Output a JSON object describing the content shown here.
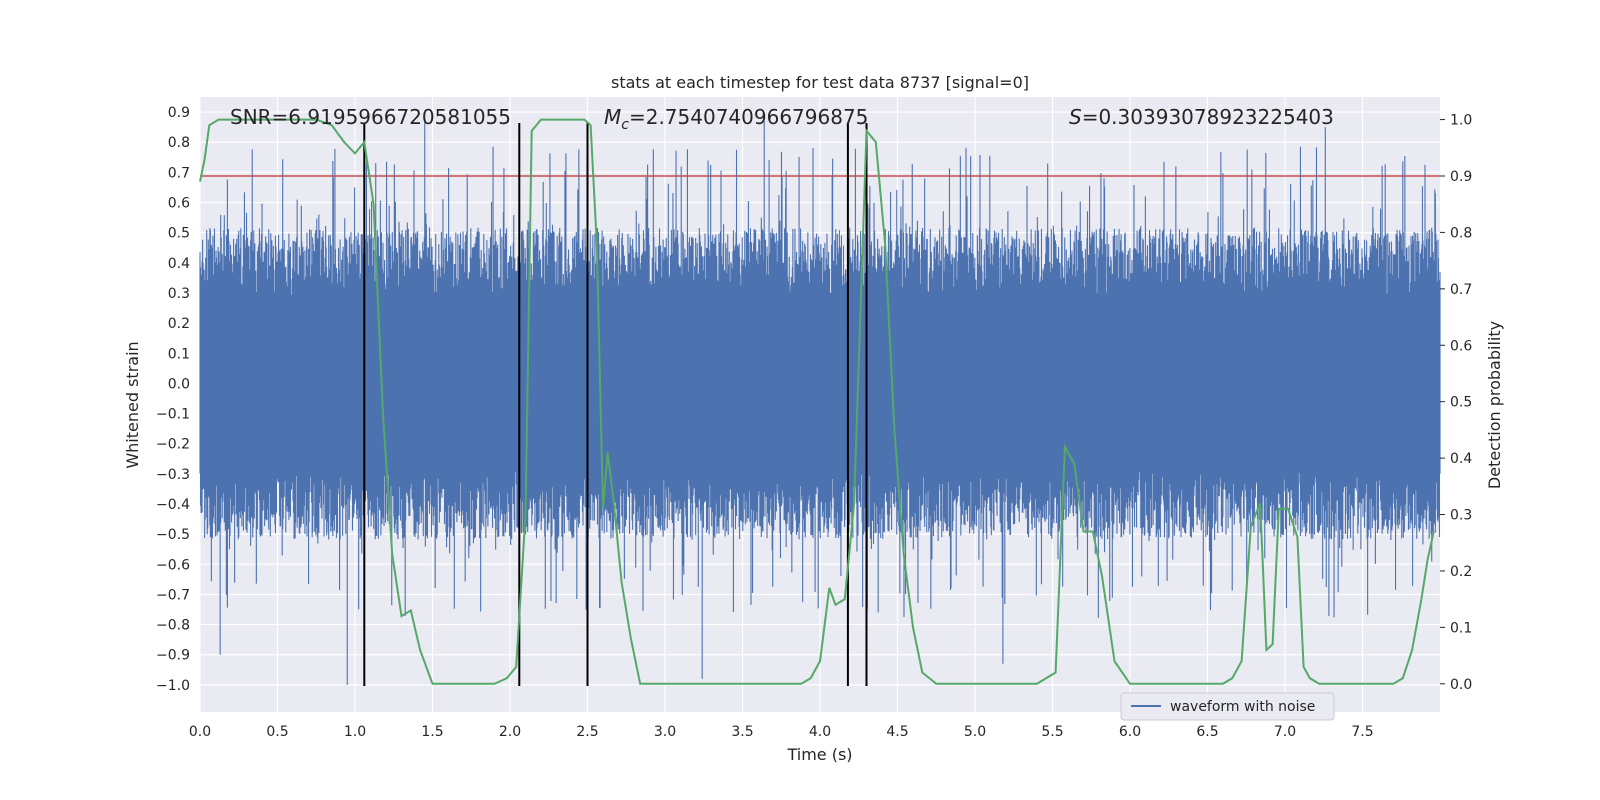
{
  "chart_data": {
    "type": "line",
    "title": "stats at each timestep for test data 8737 [signal=0]",
    "xlabel": "Time (s)",
    "ylabel": "Whitened strain",
    "y2label": "Detection probability",
    "xlim": [
      0.0,
      8.0
    ],
    "ylim": [
      -1.09,
      0.95
    ],
    "y2lim": [
      -0.05,
      1.04
    ],
    "x_ticks": [
      "0.0",
      "0.5",
      "1.0",
      "1.5",
      "2.0",
      "2.5",
      "3.0",
      "3.5",
      "4.0",
      "4.5",
      "5.0",
      "5.5",
      "6.0",
      "6.5",
      "7.0",
      "7.5"
    ],
    "y_ticks": [
      "0.9",
      "0.8",
      "0.7",
      "0.6",
      "0.5",
      "0.4",
      "0.3",
      "0.2",
      "0.1",
      "0.0",
      "−0.1",
      "−0.2",
      "−0.3",
      "−0.4",
      "−0.5",
      "−0.6",
      "−0.7",
      "−0.8",
      "−0.9",
      "−1.0"
    ],
    "y2_ticks": [
      "1.0",
      "0.9",
      "0.8",
      "0.7",
      "0.6",
      "0.5",
      "0.4",
      "0.3",
      "0.2",
      "0.1",
      "0.0"
    ],
    "grid": true,
    "legend": {
      "position": "lower-right",
      "entries": [
        "waveform with noise"
      ]
    },
    "annotations": {
      "snr": "SNR=6.9195966720581055",
      "mc_symbol": "M",
      "mc_sub": "c",
      "mc_value": "=2.7540740966796875",
      "s_symbol": "S",
      "s_value": "=0.30393078923225403"
    },
    "threshold": {
      "axis": "right",
      "value": 0.9,
      "color": "#c44e52"
    },
    "vertical_lines": {
      "x": [
        1.06,
        2.06,
        2.5,
        4.18,
        4.3
      ],
      "color": "#000000"
    },
    "series": [
      {
        "name": "waveform with noise",
        "axis": "left",
        "color": "#4c72b0",
        "style": "noise band",
        "x_range": [
          0.0,
          8.0
        ],
        "typical_range": [
          -0.45,
          0.45
        ],
        "max_peak": 0.87,
        "min_peak": -1.0,
        "peaks": [
          {
            "x": 0.95,
            "y": -1.0
          },
          {
            "x": 0.13,
            "y": -0.9
          },
          {
            "x": 3.24,
            "y": -0.98
          },
          {
            "x": 5.18,
            "y": -0.93
          },
          {
            "x": 1.45,
            "y": 0.87
          },
          {
            "x": 3.64,
            "y": 0.87
          },
          {
            "x": 7.26,
            "y": 0.85
          }
        ]
      },
      {
        "axis": "right",
        "color": "#55a868",
        "x": [
          0.0,
          0.03,
          0.06,
          0.12,
          0.2,
          0.4,
          0.6,
          0.75,
          0.85,
          0.93,
          1.0,
          1.06,
          1.12,
          1.18,
          1.24,
          1.3,
          1.36,
          1.42,
          1.5,
          1.6,
          1.75,
          1.9,
          1.98,
          2.04,
          2.1,
          2.14,
          2.2,
          2.3,
          2.4,
          2.48,
          2.52,
          2.56,
          2.6,
          2.63,
          2.67,
          2.72,
          2.78,
          2.84,
          2.9,
          3.0,
          3.2,
          3.5,
          3.8,
          3.88,
          3.94,
          4.0,
          4.06,
          4.1,
          4.16,
          4.22,
          4.3,
          4.36,
          4.42,
          4.48,
          4.54,
          4.6,
          4.66,
          4.75,
          5.0,
          5.2,
          5.4,
          5.46,
          5.52,
          5.58,
          5.64,
          5.7,
          5.76,
          5.82,
          5.9,
          6.0,
          6.2,
          6.4,
          6.6,
          6.66,
          6.72,
          6.78,
          6.84,
          6.88,
          6.92,
          6.96,
          7.02,
          7.08,
          7.12,
          7.16,
          7.22,
          7.3,
          7.5,
          7.7,
          7.76,
          7.82,
          7.88,
          7.92,
          7.96
        ],
        "y": [
          0.89,
          0.93,
          0.99,
          1.0,
          1.0,
          1.0,
          1.0,
          1.0,
          0.99,
          0.96,
          0.94,
          0.96,
          0.85,
          0.48,
          0.23,
          0.12,
          0.13,
          0.06,
          0.0,
          0.0,
          0.0,
          0.0,
          0.01,
          0.03,
          0.3,
          0.98,
          1.0,
          1.0,
          1.0,
          1.0,
          0.99,
          0.78,
          0.31,
          0.41,
          0.32,
          0.18,
          0.08,
          0.0,
          0.0,
          0.0,
          0.0,
          0.0,
          0.0,
          0.0,
          0.01,
          0.04,
          0.17,
          0.14,
          0.15,
          0.32,
          0.98,
          0.96,
          0.78,
          0.45,
          0.23,
          0.1,
          0.02,
          0.0,
          0.0,
          0.0,
          0.0,
          0.01,
          0.02,
          0.42,
          0.39,
          0.27,
          0.27,
          0.19,
          0.04,
          0.0,
          0.0,
          0.0,
          0.0,
          0.01,
          0.04,
          0.28,
          0.32,
          0.06,
          0.07,
          0.31,
          0.31,
          0.26,
          0.03,
          0.01,
          0.0,
          0.0,
          0.0,
          0.0,
          0.01,
          0.06,
          0.15,
          0.22,
          0.27
        ]
      }
    ]
  }
}
